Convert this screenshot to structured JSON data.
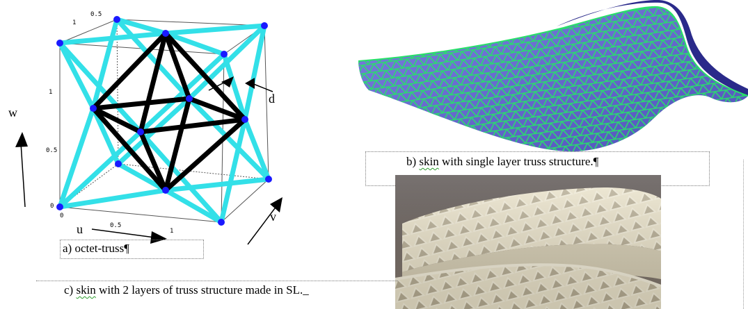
{
  "figure_a": {
    "caption_label": "a) ",
    "caption_main": "octet-truss",
    "caption_mark": "¶",
    "axis_w": "w",
    "axis_u": "u",
    "axis_v": "v",
    "label_d": "d",
    "ticks": [
      "0.5",
      "1",
      "1",
      "0.5",
      "0",
      "0",
      "0.5",
      "1"
    ],
    "colors": {
      "outer_truss": "#33e0e8",
      "inner_truss": "#000000",
      "nodes": "#1a1aff"
    }
  },
  "figure_b": {
    "caption_label": "b) ",
    "caption_squig": "skin",
    "caption_rest": " with single layer truss structure.",
    "caption_mark": "¶",
    "colors": {
      "skin": "#6a6fd6",
      "truss": "#28e06a"
    }
  },
  "figure_c": {
    "caption_label": "c) ",
    "caption_squig": "skin",
    "caption_rest": " with 2 layers of truss structure made in SL.",
    "caption_mark": "_"
  }
}
